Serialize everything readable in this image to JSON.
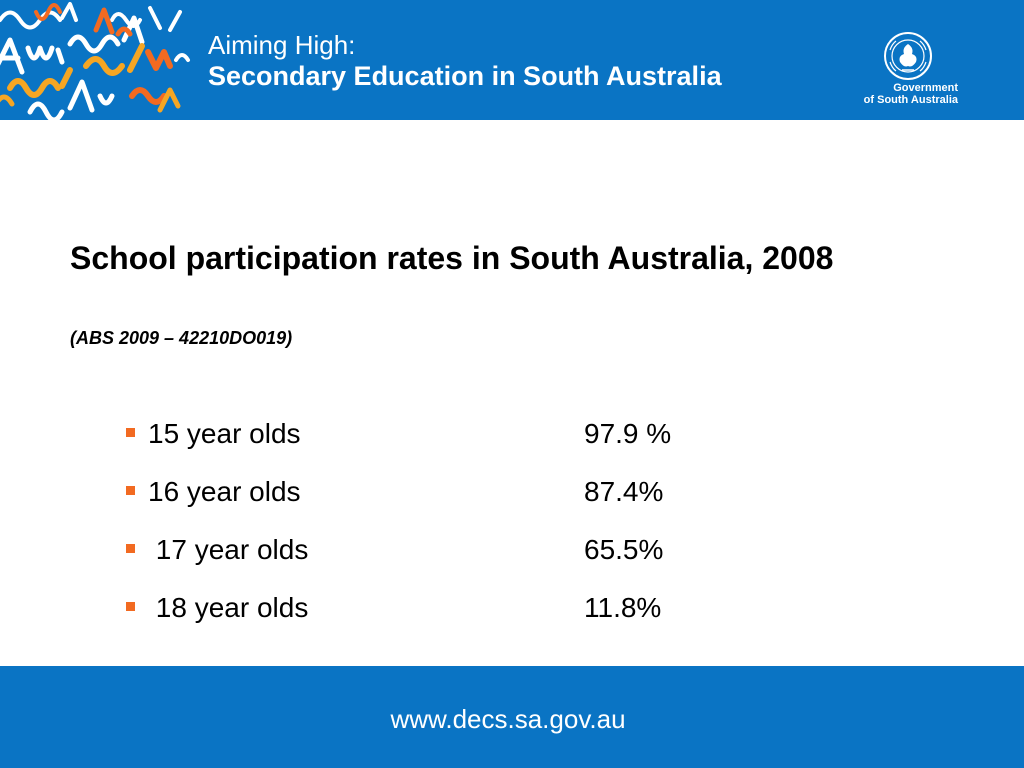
{
  "header": {
    "title_line1": "Aiming High:",
    "title_line2": "Secondary Education in South Australia",
    "band_color": "#0a74c4",
    "logo": {
      "crest_icon": "south-australia-crest-icon",
      "crest_text": "SOUTH AUSTRALIA",
      "text_line1": "Government",
      "text_line2": "of South Australia"
    }
  },
  "slide": {
    "heading": "School participation rates in South Australia, 2008",
    "source": "(ABS 2009 – 42210DO019)",
    "bullet_color": "#f26a21",
    "items": [
      {
        "label": "15 year olds",
        "value": "97.9 %"
      },
      {
        "label": "16 year olds",
        "value": "87.4%"
      },
      {
        "label": " 17 year olds",
        "value": "65.5%"
      },
      {
        "label": " 18 year olds",
        "value": "11.8%"
      }
    ]
  },
  "footer": {
    "url": "www.decs.sa.gov.au"
  }
}
